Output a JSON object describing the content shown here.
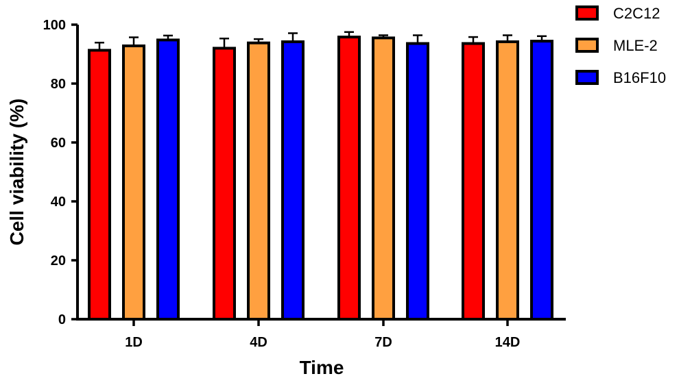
{
  "chart_data": {
    "type": "bar",
    "title": "",
    "xlabel": "Time",
    "ylabel": "Cell viability (%)",
    "categories": [
      "1D",
      "4D",
      "7D",
      "14D"
    ],
    "ylim": [
      0,
      100
    ],
    "yticks": [
      "0",
      "20",
      "40",
      "60",
      "80",
      "100"
    ],
    "grid": false,
    "legend_position": "top-right",
    "error_bars": true,
    "series": [
      {
        "name": "C2C12",
        "color": "#ff0000",
        "values": [
          91.3,
          92.0,
          95.8,
          93.6
        ],
        "errors": [
          2.6,
          3.3,
          1.7,
          2.2
        ]
      },
      {
        "name": "MLE-2",
        "color": "#ffa040",
        "values": [
          92.8,
          93.8,
          95.5,
          94.2
        ],
        "errors": [
          2.9,
          1.3,
          0.9,
          2.2
        ]
      },
      {
        "name": "B16F10",
        "color": "#0000ff",
        "values": [
          94.8,
          94.2,
          93.6,
          94.4
        ],
        "errors": [
          1.5,
          2.9,
          2.8,
          1.7
        ]
      }
    ]
  }
}
